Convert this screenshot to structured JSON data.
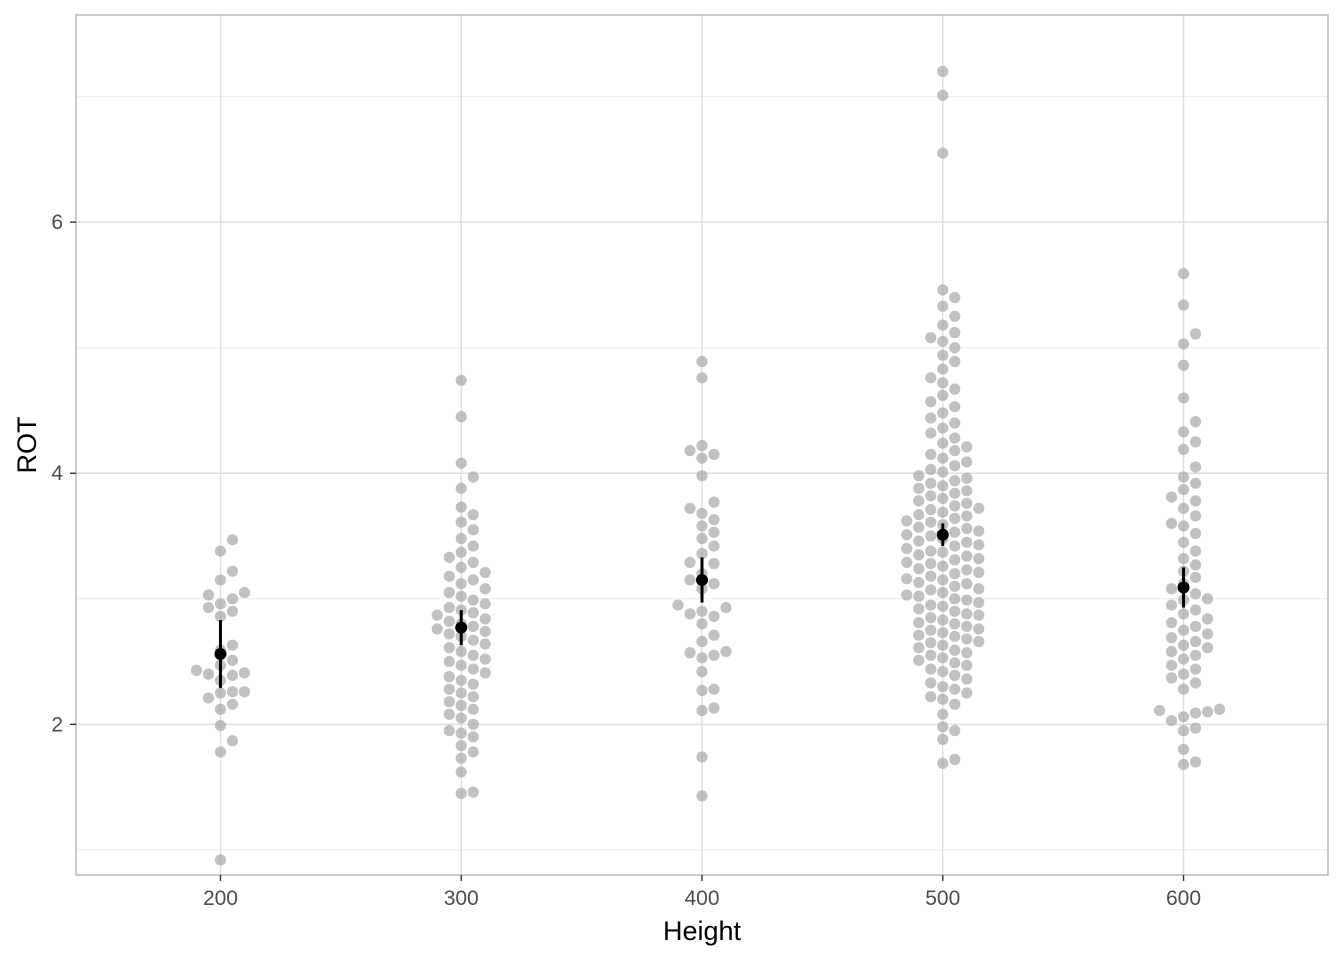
{
  "chart_data": {
    "type": "scatter",
    "subtype": "beeswarm with mean and interval",
    "xlabel": "Height",
    "ylabel": "ROT",
    "xlim": [
      140,
      660
    ],
    "ylim": [
      0.8,
      7.65
    ],
    "x_ticks": [
      200,
      300,
      400,
      500,
      600
    ],
    "y_ticks": [
      2,
      4,
      6
    ],
    "y_minor_ticks": [
      1,
      3,
      5,
      7
    ],
    "grid": true,
    "point_color": "#a6a6a6",
    "summary_color": "#000000",
    "groups": [
      {
        "x": 200,
        "mean": 2.56,
        "lower": 2.29,
        "upper": 2.83,
        "values": [
          0.92,
          1.78,
          1.87,
          1.99,
          2.12,
          2.16,
          2.21,
          2.25,
          2.26,
          2.26,
          2.35,
          2.39,
          2.4,
          2.41,
          2.43,
          2.47,
          2.51,
          2.59,
          2.63,
          2.86,
          2.9,
          2.93,
          2.96,
          3.0,
          3.03,
          3.05,
          3.15,
          3.22,
          3.38,
          3.47
        ]
      },
      {
        "x": 300,
        "mean": 2.77,
        "lower": 2.63,
        "upper": 2.91,
        "values": [
          1.45,
          1.46,
          1.62,
          1.73,
          1.78,
          1.83,
          1.9,
          1.93,
          1.95,
          2.0,
          2.05,
          2.08,
          2.12,
          2.15,
          2.18,
          2.22,
          2.25,
          2.28,
          2.32,
          2.35,
          2.38,
          2.41,
          2.44,
          2.47,
          2.5,
          2.52,
          2.55,
          2.58,
          2.61,
          2.64,
          2.67,
          2.7,
          2.72,
          2.74,
          2.76,
          2.78,
          2.8,
          2.82,
          2.84,
          2.87,
          2.89,
          2.91,
          2.93,
          2.96,
          2.99,
          3.02,
          3.05,
          3.08,
          3.12,
          3.15,
          3.18,
          3.21,
          3.25,
          3.29,
          3.33,
          3.37,
          3.42,
          3.48,
          3.55,
          3.61,
          3.67,
          3.73,
          3.88,
          3.97,
          4.08,
          4.45,
          4.74
        ]
      },
      {
        "x": 400,
        "mean": 3.15,
        "lower": 2.97,
        "upper": 3.33,
        "values": [
          1.43,
          1.74,
          2.11,
          2.13,
          2.27,
          2.28,
          2.42,
          2.53,
          2.55,
          2.57,
          2.58,
          2.66,
          2.71,
          2.8,
          2.86,
          2.88,
          2.9,
          2.93,
          2.95,
          3.08,
          3.12,
          3.15,
          3.2,
          3.28,
          3.29,
          3.36,
          3.42,
          3.48,
          3.53,
          3.58,
          3.63,
          3.68,
          3.72,
          3.77,
          3.98,
          4.12,
          4.15,
          4.18,
          4.22,
          4.76,
          4.89
        ]
      },
      {
        "x": 500,
        "mean": 3.51,
        "lower": 3.42,
        "upper": 3.6,
        "values": [
          1.69,
          1.72,
          1.88,
          1.95,
          1.98,
          2.08,
          2.16,
          2.2,
          2.22,
          2.25,
          2.28,
          2.3,
          2.33,
          2.36,
          2.39,
          2.42,
          2.44,
          2.47,
          2.49,
          2.51,
          2.53,
          2.55,
          2.57,
          2.59,
          2.61,
          2.63,
          2.65,
          2.66,
          2.68,
          2.7,
          2.71,
          2.73,
          2.75,
          2.76,
          2.78,
          2.8,
          2.81,
          2.83,
          2.85,
          2.87,
          2.88,
          2.9,
          2.92,
          2.94,
          2.95,
          2.97,
          2.99,
          3.0,
          3.02,
          3.03,
          3.05,
          3.07,
          3.08,
          3.1,
          3.12,
          3.13,
          3.15,
          3.16,
          3.18,
          3.2,
          3.21,
          3.23,
          3.24,
          3.26,
          3.28,
          3.29,
          3.31,
          3.32,
          3.34,
          3.35,
          3.37,
          3.38,
          3.4,
          3.42,
          3.43,
          3.45,
          3.46,
          3.48,
          3.5,
          3.51,
          3.53,
          3.54,
          3.56,
          3.57,
          3.59,
          3.61,
          3.62,
          3.64,
          3.66,
          3.67,
          3.69,
          3.71,
          3.72,
          3.74,
          3.76,
          3.78,
          3.8,
          3.82,
          3.84,
          3.86,
          3.88,
          3.9,
          3.92,
          3.94,
          3.96,
          3.98,
          4.01,
          4.03,
          4.06,
          4.09,
          4.12,
          4.15,
          4.18,
          4.21,
          4.24,
          4.28,
          4.32,
          4.36,
          4.4,
          4.44,
          4.48,
          4.53,
          4.57,
          4.62,
          4.67,
          4.72,
          4.76,
          4.83,
          4.89,
          4.94,
          5.0,
          5.05,
          5.08,
          5.12,
          5.18,
          5.25,
          5.33,
          5.4,
          5.46,
          6.55,
          7.01,
          7.2
        ]
      },
      {
        "x": 600,
        "mean": 3.09,
        "lower": 2.93,
        "upper": 3.25,
        "values": [
          1.68,
          1.7,
          1.8,
          1.95,
          1.97,
          2.03,
          2.06,
          2.09,
          2.1,
          2.11,
          2.12,
          2.28,
          2.33,
          2.37,
          2.4,
          2.44,
          2.47,
          2.52,
          2.55,
          2.58,
          2.61,
          2.63,
          2.66,
          2.69,
          2.72,
          2.75,
          2.78,
          2.81,
          2.84,
          2.88,
          2.91,
          2.95,
          2.99,
          3.0,
          3.04,
          3.08,
          3.12,
          3.17,
          3.22,
          3.27,
          3.32,
          3.38,
          3.45,
          3.52,
          3.58,
          3.6,
          3.66,
          3.72,
          3.78,
          3.81,
          3.87,
          3.92,
          3.97,
          4.05,
          4.19,
          4.25,
          4.33,
          4.41,
          4.6,
          4.86,
          5.03,
          5.11,
          5.34,
          5.59
        ]
      }
    ]
  }
}
